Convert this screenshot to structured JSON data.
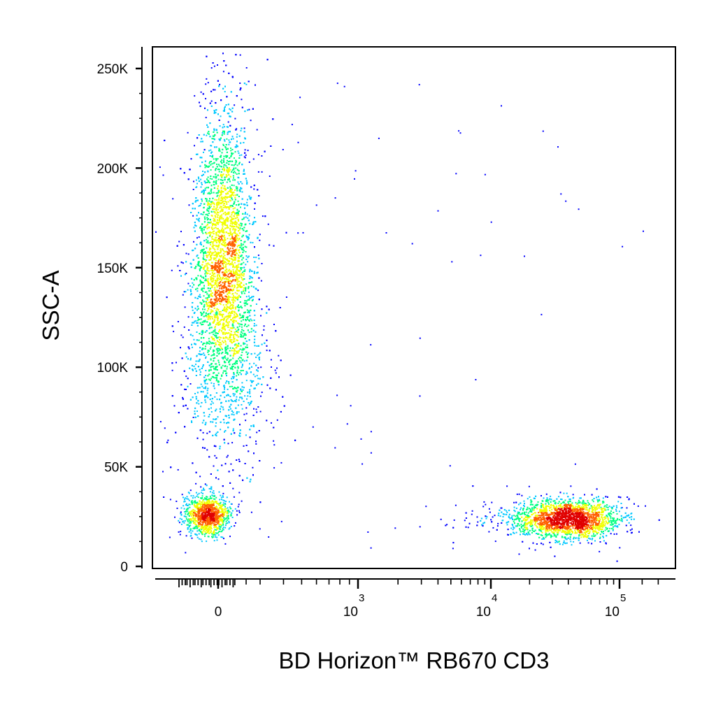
{
  "chart_data": {
    "type": "scatter",
    "subtype": "flow-cytometry density dot plot",
    "xlabel": "BD Horizon™ RB670  CD3",
    "ylabel": "SSC-A",
    "x_scale": "biexponential (linear near 0, log above ~10^2.5)",
    "y_scale": "linear",
    "ylim": [
      0,
      262144
    ],
    "y_ticks": [
      {
        "value": 0,
        "label": "0"
      },
      {
        "value": 50000,
        "label": "50K"
      },
      {
        "value": 100000,
        "label": "100K"
      },
      {
        "value": 150000,
        "label": "150K"
      },
      {
        "value": 200000,
        "label": "200K"
      },
      {
        "value": 250000,
        "label": "250K"
      }
    ],
    "x_ticks": [
      {
        "value": 0,
        "base": "0",
        "exp": ""
      },
      {
        "value": 1000,
        "base": "10",
        "exp": "3"
      },
      {
        "value": 10000,
        "base": "10",
        "exp": "4"
      },
      {
        "value": 100000,
        "base": "10",
        "exp": "5"
      }
    ],
    "grid": false,
    "legend": "none",
    "colormap": [
      "#0000ff",
      "#00c8ff",
      "#00ff80",
      "#f0ff00",
      "#ff6000",
      "#e00000"
    ],
    "populations": [
      {
        "description": "CD3-negative events, wide SSC spread",
        "x_center": 0,
        "y_center": 145000,
        "y_range": [
          15000,
          245000
        ],
        "approx_fraction": 0.62
      },
      {
        "description": "CD3-negative low-SSC cluster",
        "x_center": 0,
        "y_center": 26000,
        "approx_fraction": 0.1
      },
      {
        "description": "CD3-positive lymphocytes",
        "x_center": 40000,
        "y_center": 24000,
        "x_range": [
          5000,
          130000
        ],
        "approx_fraction": 0.26
      },
      {
        "description": "sparse scattered events",
        "approx_fraction": 0.02
      }
    ]
  }
}
